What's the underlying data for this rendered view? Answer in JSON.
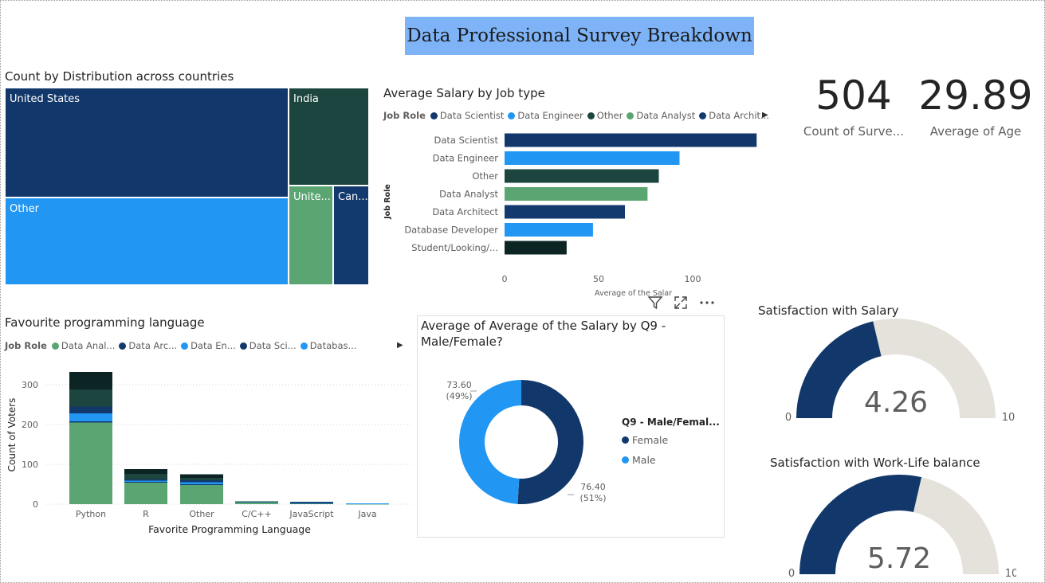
{
  "header": {
    "title": "Data Professional Survey Breakdown"
  },
  "colors": {
    "dark_navy": "#12386b",
    "blue": "#2196f3",
    "dark_green": "#1b453e",
    "green": "#5ba572",
    "navy": "#133a6e",
    "darkest": "#0c2424",
    "gauge_bg": "#e5e2dc"
  },
  "treemap": {
    "title": "Count by Distribution across countries",
    "cells": [
      {
        "label": "United States",
        "color": "#12386b"
      },
      {
        "label": "Other",
        "color": "#2196f3"
      },
      {
        "label": "India",
        "color": "#1b453e"
      },
      {
        "label": "Unite...",
        "color": "#5ba572"
      },
      {
        "label": "Can...",
        "color": "#133a6e"
      }
    ]
  },
  "salary_chart": {
    "title": "Average Salary by Job type",
    "legend_title": "Job Role",
    "legend": [
      {
        "label": "Data Scientist",
        "color": "#12386b"
      },
      {
        "label": "Data Engineer",
        "color": "#2196f3"
      },
      {
        "label": "Other",
        "color": "#1b453e"
      },
      {
        "label": "Data Analyst",
        "color": "#5ba572"
      },
      {
        "label": "Data Archit...",
        "color": "#133a6e"
      }
    ],
    "ylabel": "Job Role",
    "xlabel": "Average of the Salar",
    "xticks": [
      "0",
      "50",
      "100"
    ]
  },
  "language_chart": {
    "title": "Favourite programming language",
    "legend_title": "Job Role",
    "legend": [
      {
        "label": "Data Anal...",
        "color": "#5ba572"
      },
      {
        "label": "Data Arc...",
        "color": "#133a6e"
      },
      {
        "label": "Data En...",
        "color": "#2196f3"
      },
      {
        "label": "Data Sci...",
        "color": "#12386b"
      },
      {
        "label": "Databas...",
        "color": "#2196f3"
      }
    ],
    "ylabel": "Count of Voters",
    "xlabel": "Favorite Programming Language",
    "yticks": [
      "0",
      "100",
      "200",
      "300"
    ]
  },
  "donut_chart": {
    "title_line1": "Average of Average of the Salary by Q9 -",
    "title_line2": "Male/Female?",
    "legend_title": "Q9 - Male/Femal...",
    "female_label": "Female",
    "male_label": "Male",
    "male_value_label": "73.60",
    "male_pct_label": "(49%)",
    "female_value_label": "76.40",
    "female_pct_label": "(51%)"
  },
  "kpis": [
    {
      "value": "504",
      "label": "Count of Surve..."
    },
    {
      "value": "29.89",
      "label": "Average of Age"
    }
  ],
  "gauges": [
    {
      "title": "Satisfaction with Salary",
      "value": 4.26,
      "value_label": "4.26",
      "min_label": "0",
      "max_label": "10"
    },
    {
      "title": "Satisfaction with Work-Life balance",
      "value": 5.72,
      "value_label": "5.72",
      "min_label": "0",
      "max_label": "10"
    }
  ],
  "chart_data": [
    {
      "type": "treemap",
      "title": "Count by Distribution across countries",
      "categories": [
        "United States",
        "Other",
        "India",
        "Unite...",
        "Can..."
      ],
      "values": [
        221,
        189,
        65,
        32,
        30
      ]
    },
    {
      "type": "bar",
      "orientation": "horizontal",
      "title": "Average Salary by Job type",
      "categories": [
        "Data Scientist",
        "Data Engineer",
        "Other",
        "Data Analyst",
        "Data Architect",
        "Database Developer",
        "Student/Looking/..."
      ],
      "values": [
        134,
        93,
        82,
        76,
        64,
        47,
        33
      ],
      "colors": [
        "#12386b",
        "#2196f3",
        "#1b453e",
        "#5ba572",
        "#133a6e",
        "#2196f3",
        "#0c2424"
      ],
      "xlim": [
        0,
        134
      ],
      "xlabel": "Average of the Salar",
      "ylabel": "Job Role"
    },
    {
      "type": "bar",
      "stacked": true,
      "title": "Favourite programming language",
      "categories": [
        "Python",
        "R",
        "Other",
        "C/C++",
        "JavaScript",
        "Java"
      ],
      "series": [
        {
          "name": "Data Anal...",
          "color": "#5ba572",
          "values": [
            205,
            54,
            48,
            5,
            2,
            1
          ]
        },
        {
          "name": "Data Arc...",
          "color": "#133a6e",
          "values": [
            3,
            2,
            2,
            0,
            1,
            0
          ]
        },
        {
          "name": "Data En...",
          "color": "#2196f3",
          "values": [
            20,
            3,
            5,
            1,
            2,
            1
          ]
        },
        {
          "name": "Data Sci...",
          "color": "#12386b",
          "values": [
            17,
            3,
            5,
            0,
            1,
            0
          ]
        },
        {
          "name": "Databas...",
          "color": "#2196f3",
          "values": [
            0,
            0,
            0,
            0,
            0,
            0
          ]
        },
        {
          "color": "#1b453e",
          "values": [
            43,
            14,
            6,
            1,
            0,
            0
          ]
        },
        {
          "color": "#0c2424",
          "values": [
            44,
            12,
            9,
            0,
            0,
            0
          ]
        }
      ],
      "ylim": [
        0,
        340
      ],
      "xlabel": "Favorite Programming Language",
      "ylabel": "Count of Voters"
    },
    {
      "type": "pie",
      "donut": true,
      "title": "Average of Average of the Salary by Q9 - Male/Female?",
      "categories": [
        "Female",
        "Male"
      ],
      "values": [
        76.4,
        73.6
      ],
      "percent": [
        51,
        49
      ],
      "colors": [
        "#12386b",
        "#2196f3"
      ]
    }
  ]
}
